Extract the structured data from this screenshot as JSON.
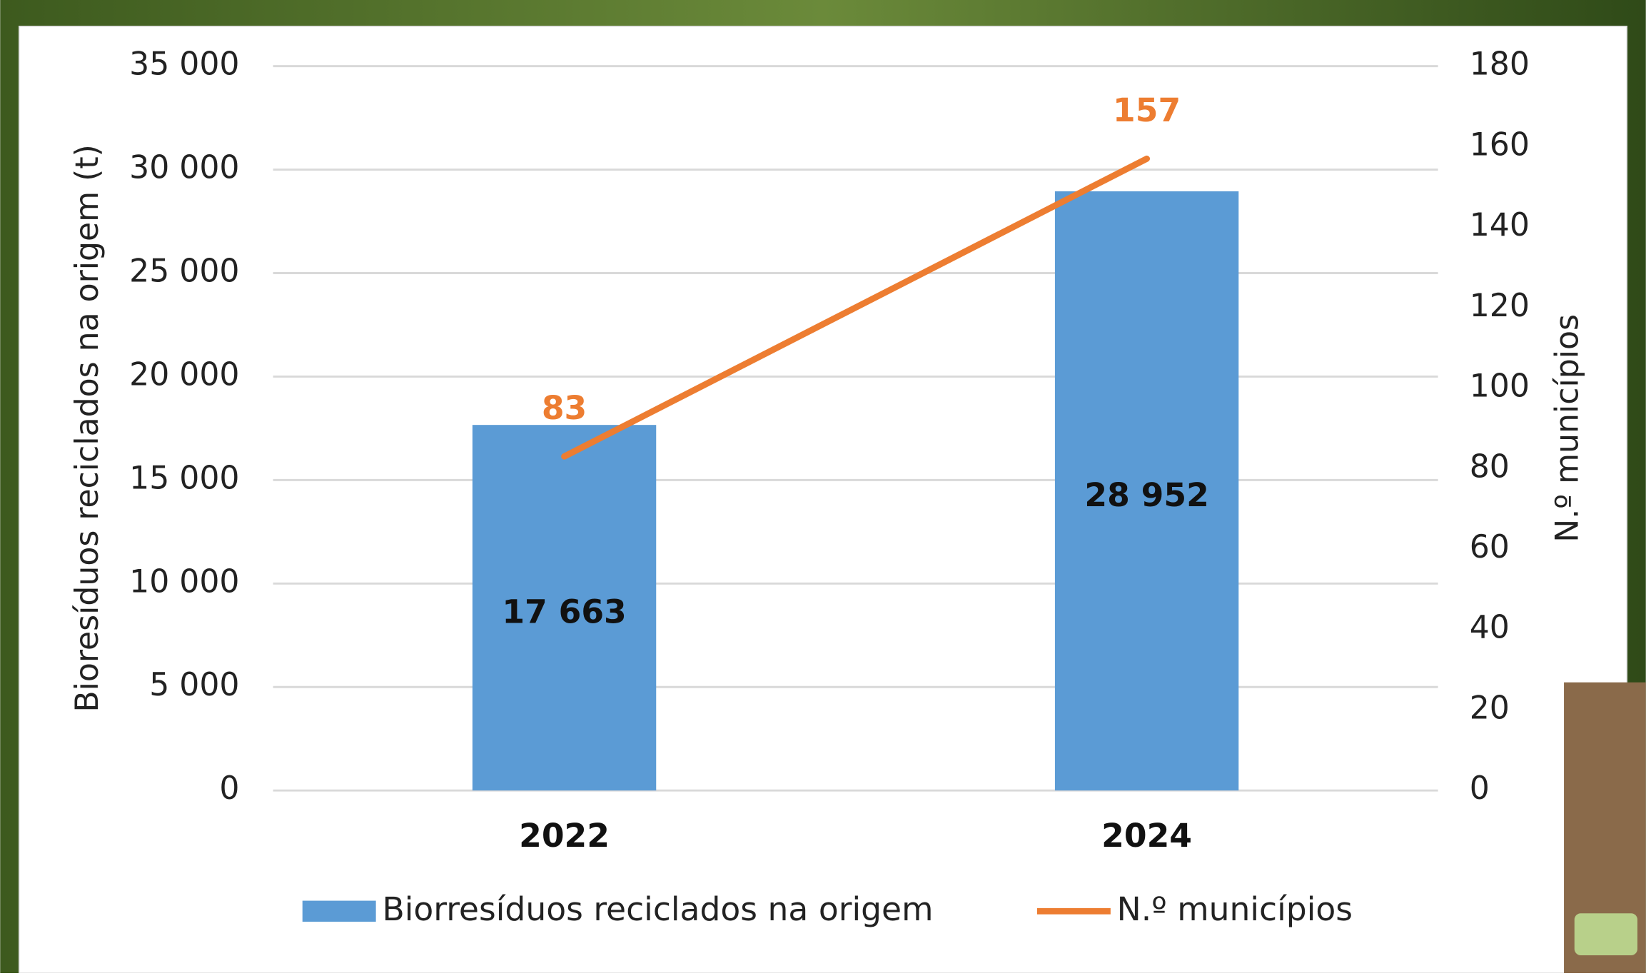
{
  "chart_data": {
    "type": "bar",
    "categories": [
      "2022",
      "2024"
    ],
    "series": [
      {
        "name": "Biorresíduos reciclados na origem",
        "type": "bar",
        "color": "#5b9bd5",
        "values": [
          17663,
          28952
        ],
        "value_labels": [
          "17 663",
          "28 952"
        ]
      },
      {
        "name": "N.º municípios",
        "type": "line",
        "axis": "y2",
        "color": "#ed7d31",
        "values": [
          83,
          157
        ]
      }
    ],
    "ylabel": "Bioresíduos reciclados na origem (t)",
    "y2label": "N.º municípios",
    "ylim": [
      0,
      35000
    ],
    "yticks": [
      {
        "value": 0,
        "label": "0"
      },
      {
        "value": 5000,
        "label": "5 000"
      },
      {
        "value": 10000,
        "label": "10 000"
      },
      {
        "value": 15000,
        "label": "15 000"
      },
      {
        "value": 20000,
        "label": "20 000"
      },
      {
        "value": 25000,
        "label": "25 000"
      },
      {
        "value": 30000,
        "label": "30 000"
      },
      {
        "value": 35000,
        "label": "35 000"
      }
    ],
    "y2lim": [
      0,
      180
    ],
    "y2ticks": [
      0,
      20,
      40,
      60,
      80,
      100,
      120,
      140,
      160,
      180
    ],
    "grid": true,
    "legend": "bottom"
  }
}
